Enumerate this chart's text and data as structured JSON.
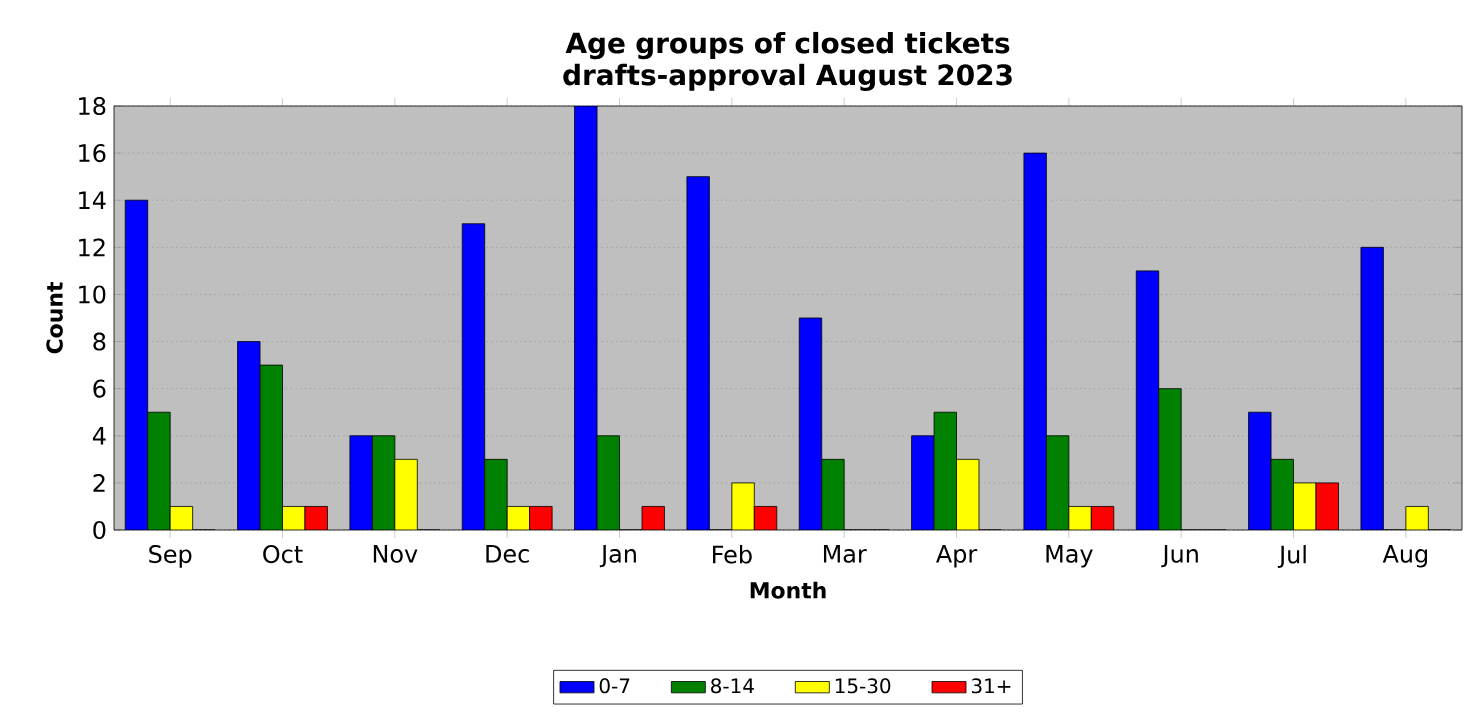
{
  "chart_data": {
    "type": "bar",
    "title": "Age groups of closed tickets\ndrafts-approval August 2023",
    "xlabel": "Month",
    "ylabel": "Count",
    "categories": [
      "Sep",
      "Oct",
      "Nov",
      "Dec",
      "Jan",
      "Feb",
      "Mar",
      "Apr",
      "May",
      "Jun",
      "Jul",
      "Aug"
    ],
    "series": [
      {
        "name": "0-7",
        "color": "#0000ff",
        "values": [
          14,
          8,
          4,
          13,
          18,
          15,
          9,
          4,
          16,
          11,
          5,
          12
        ]
      },
      {
        "name": "8-14",
        "color": "#008000",
        "values": [
          5,
          7,
          4,
          3,
          4,
          0,
          3,
          5,
          4,
          6,
          3,
          0
        ]
      },
      {
        "name": "15-30",
        "color": "#ffff00",
        "values": [
          1,
          1,
          3,
          1,
          0,
          2,
          0,
          3,
          1,
          0,
          2,
          1
        ]
      },
      {
        "name": "31+",
        "color": "#ff0000",
        "values": [
          0,
          1,
          0,
          1,
          1,
          1,
          0,
          0,
          1,
          0,
          2,
          0
        ]
      }
    ],
    "ylim": [
      0,
      18
    ],
    "yticks": [
      0,
      2,
      4,
      6,
      8,
      10,
      12,
      14,
      16,
      18
    ],
    "grid": "y",
    "legend": "bottom"
  }
}
